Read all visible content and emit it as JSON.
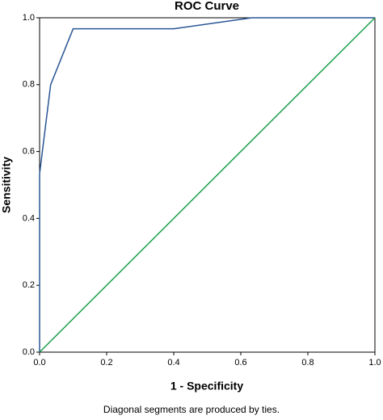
{
  "chart_data": {
    "type": "line",
    "title": "ROC Curve",
    "x_label": "1 - Specificity",
    "y_label": "Sensitivity",
    "footnote": "Diagonal segments are produced by ties.",
    "series": [
      {
        "color": "#2a5595",
        "x": [
          0,
          0,
          0.033,
          0.1,
          0.4,
          0.633,
          1
        ],
        "values": [
          0,
          0.533,
          0.8,
          0.967,
          0.967,
          1,
          1
        ]
      },
      {
        "color": "#1aa04a",
        "x": [
          0,
          1
        ],
        "values": [
          0,
          1
        ]
      }
    ],
    "xlim": [
      0,
      1
    ],
    "ylim": [
      0,
      1
    ],
    "xticks": [
      {
        "value": 0,
        "label": "0.0"
      },
      {
        "value": 0.2,
        "label": "0.2"
      },
      {
        "value": 0.4,
        "label": "0.4"
      },
      {
        "value": 0.6,
        "label": "0.6"
      },
      {
        "value": 0.8,
        "label": "0.8"
      },
      {
        "value": 1,
        "label": "1.0"
      }
    ],
    "yticks": [
      {
        "value": 0,
        "label": "0.0"
      },
      {
        "value": 0.2,
        "label": "0.2"
      },
      {
        "value": 0.4,
        "label": "0.4"
      },
      {
        "value": 0.6,
        "label": "0.6"
      },
      {
        "value": 0.8,
        "label": "0.8"
      },
      {
        "value": 1,
        "label": "1.0"
      }
    ],
    "grid": false
  }
}
